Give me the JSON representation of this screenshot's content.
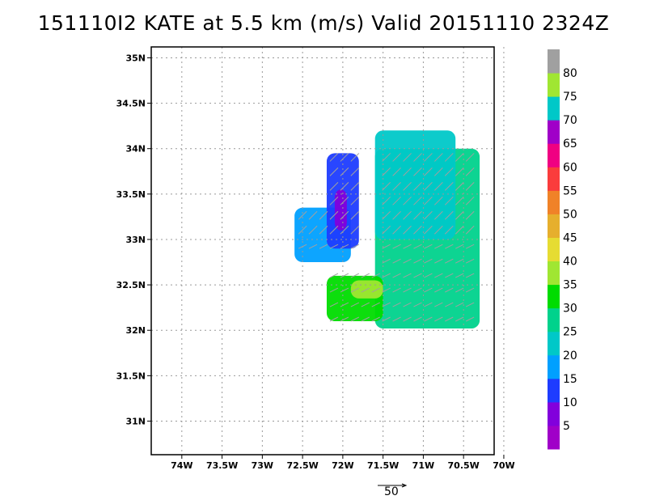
{
  "chart_data": {
    "type": "heatmap",
    "title": "151110I2 KATE at 5.5 km (m/s) Valid 20151110 2324Z",
    "xaxis": {
      "ticks": [
        -74,
        -73.5,
        -73,
        -72.5,
        -72,
        -71.5,
        -71,
        -70.5,
        -70
      ],
      "tick_labels": [
        "74W",
        "73.5W",
        "73W",
        "72.5W",
        "72W",
        "71.5W",
        "71W",
        "70.5W",
        "70W"
      ],
      "range": [
        -74.38,
        -70.12
      ]
    },
    "yaxis": {
      "ticks": [
        31,
        31.5,
        32,
        32.5,
        33,
        33.5,
        34,
        34.5,
        35
      ],
      "tick_labels": [
        "31N",
        "31.5N",
        "32N",
        "32.5N",
        "33N",
        "33.5N",
        "34N",
        "34.5N",
        "35N"
      ],
      "range": [
        30.63,
        35.12
      ]
    },
    "grid": true,
    "colorbar": {
      "levels": [
        5,
        10,
        15,
        20,
        25,
        30,
        35,
        40,
        45,
        50,
        55,
        60,
        65,
        70,
        75,
        80
      ],
      "colors": [
        "#a000c8",
        "#8200dc",
        "#1e3cff",
        "#00a0ff",
        "#00c8c8",
        "#00d28c",
        "#00dc00",
        "#a0e632",
        "#e6dc32",
        "#e6af2d",
        "#f08228",
        "#fa3c3c",
        "#f00082",
        "#a000c8",
        "#00c8c8",
        "#a0e632",
        "#a0a0a0"
      ]
    },
    "wind_reference": {
      "speed": "50",
      "units": "m/s"
    },
    "wind_speed_regions": [
      {
        "class": 25,
        "lon": [
          -71.6,
          -70.3
        ],
        "lat": [
          32.02,
          34.0
        ]
      },
      {
        "class": 20,
        "lon": [
          -71.6,
          -70.6
        ],
        "lat": [
          33.0,
          34.2
        ]
      },
      {
        "class": 15,
        "lon": [
          -72.6,
          -71.9
        ],
        "lat": [
          32.75,
          33.35
        ]
      },
      {
        "class": 10,
        "lon": [
          -72.2,
          -71.8
        ],
        "lat": [
          32.9,
          33.95
        ]
      },
      {
        "class": 5,
        "lon": [
          -72.1,
          -71.95
        ],
        "lat": [
          33.1,
          33.55
        ]
      },
      {
        "class": 30,
        "lon": [
          -72.2,
          -71.5
        ],
        "lat": [
          32.1,
          32.6
        ]
      },
      {
        "class": 35,
        "lon": [
          -71.9,
          -71.5
        ],
        "lat": [
          32.35,
          32.55
        ]
      }
    ]
  }
}
